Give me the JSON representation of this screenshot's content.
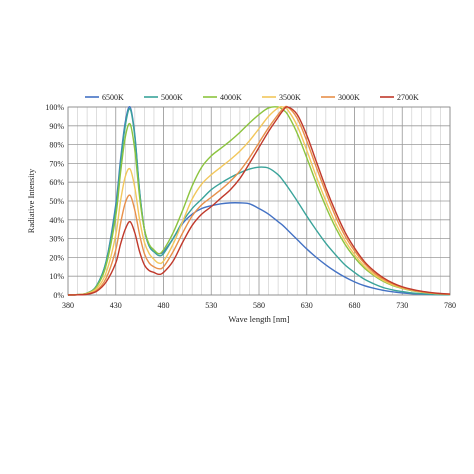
{
  "chart_data": {
    "type": "line",
    "title": "",
    "xlabel": "Wave length [nm]",
    "ylabel": "Radiative Intensity",
    "xlim": [
      380,
      780
    ],
    "ylim": [
      0,
      100
    ],
    "x_ticks": [
      380,
      430,
      480,
      530,
      580,
      630,
      680,
      730,
      780
    ],
    "x_tick_labels": [
      "380",
      "430",
      "480",
      "530",
      "580",
      "630",
      "680",
      "730",
      "780"
    ],
    "y_ticks": [
      0,
      10,
      20,
      30,
      40,
      50,
      60,
      70,
      80,
      90,
      100
    ],
    "y_tick_labels": [
      "0%",
      "10%",
      "20%",
      "30%",
      "40%",
      "50%",
      "60%",
      "70%",
      "80%",
      "90%",
      "100%"
    ],
    "x_minor_step": 10,
    "grid": true,
    "legend_position": "top",
    "x": [
      380,
      390,
      400,
      410,
      420,
      430,
      435,
      440,
      445,
      450,
      455,
      460,
      465,
      470,
      475,
      480,
      490,
      500,
      510,
      520,
      530,
      540,
      550,
      560,
      570,
      580,
      590,
      600,
      605,
      610,
      620,
      630,
      640,
      650,
      660,
      670,
      680,
      690,
      700,
      710,
      720,
      730,
      740,
      750,
      760,
      770,
      780
    ],
    "series": [
      {
        "name": "6500K",
        "color": "#4472c4",
        "values": [
          0,
          0.2,
          1,
          5,
          18,
          48,
          72,
          92,
          100,
          85,
          55,
          35,
          26,
          23,
          22,
          23,
          30,
          38,
          43,
          46,
          47.5,
          48.5,
          49,
          49,
          48.5,
          46,
          43,
          39,
          37,
          34.5,
          29.5,
          24.5,
          20,
          16,
          12.5,
          9.5,
          7,
          5,
          3.6,
          2.5,
          1.7,
          1.1,
          0.7,
          0.5,
          0.3,
          0.2,
          0.1
        ]
      },
      {
        "name": "5000K",
        "color": "#3aa39a",
        "values": [
          0,
          0.2,
          1,
          5,
          18,
          46,
          70,
          90,
          99,
          84,
          55,
          35,
          26,
          23,
          21,
          22,
          30,
          39,
          46,
          51,
          56,
          59.5,
          62.5,
          65,
          67,
          68,
          67.5,
          64,
          61,
          57.5,
          50,
          42,
          34.5,
          27.5,
          21.5,
          16,
          12,
          8.5,
          6,
          4,
          2.7,
          1.8,
          1.1,
          0.7,
          0.4,
          0.2,
          0.1
        ]
      },
      {
        "name": "4000K",
        "color": "#8cc43f",
        "values": [
          0,
          0.2,
          1,
          4.5,
          16,
          42,
          65,
          84,
          91,
          77,
          52,
          35,
          27,
          24,
          22,
          24,
          33,
          45,
          58,
          68,
          74,
          78,
          82,
          86.5,
          91.5,
          96,
          99.5,
          100,
          98.5,
          96,
          86,
          73,
          59.5,
          47,
          36,
          27,
          20,
          14.5,
          10.5,
          7.3,
          5,
          3.5,
          2.3,
          1.5,
          1,
          0.6,
          0.3
        ]
      },
      {
        "name": "3500K",
        "color": "#f2c75c",
        "values": [
          0,
          0.2,
          0.8,
          3.5,
          12,
          32,
          50,
          63,
          67,
          57,
          40,
          28,
          22,
          19,
          17,
          18,
          27,
          39,
          51,
          59,
          64,
          68,
          72,
          76.5,
          82,
          88.5,
          95,
          99.5,
          100,
          98.5,
          90,
          77,
          63,
          50,
          38.5,
          29,
          21.5,
          15.5,
          11,
          7.8,
          5.4,
          3.7,
          2.5,
          1.6,
          1,
          0.6,
          0.3
        ]
      },
      {
        "name": "3000K",
        "color": "#e8904a",
        "values": [
          0,
          0.1,
          0.6,
          2.5,
          9,
          24,
          38,
          49,
          53,
          45,
          32,
          22,
          17,
          15,
          14,
          15,
          23,
          33,
          42,
          48,
          52,
          56,
          60.5,
          66,
          73,
          81,
          89,
          96,
          99,
          100,
          94,
          82,
          68,
          54.5,
          42,
          31.5,
          23.5,
          17,
          12,
          8.5,
          5.9,
          4,
          2.7,
          1.8,
          1.1,
          0.7,
          0.4
        ]
      },
      {
        "name": "2700K",
        "color": "#c0392b",
        "values": [
          0,
          0.1,
          0.4,
          2,
          7,
          17,
          27,
          35,
          39,
          33,
          23,
          16,
          13,
          12,
          11,
          12,
          18,
          28,
          37,
          43,
          47,
          51.5,
          56,
          62,
          70,
          78.5,
          87,
          94.5,
          98,
          100,
          96,
          85,
          71,
          57,
          44.5,
          33.5,
          25,
          18,
          13,
          9.2,
          6.4,
          4.4,
          3,
          2,
          1.3,
          0.8,
          0.5
        ]
      }
    ]
  }
}
